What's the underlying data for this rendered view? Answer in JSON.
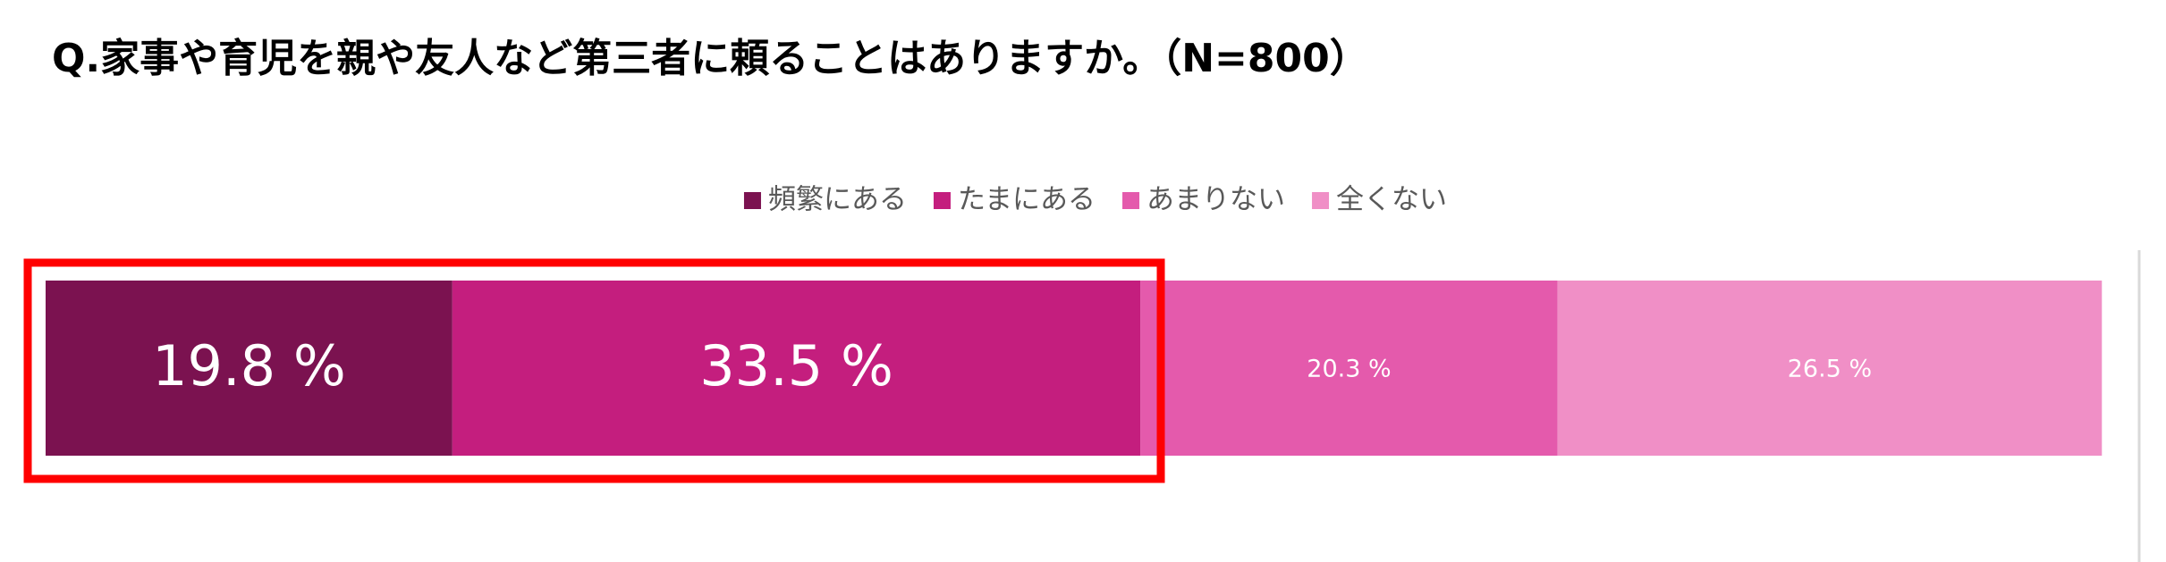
{
  "chart_data": {
    "type": "bar",
    "orientation": "horizontal",
    "stacked": true,
    "title": "Q.家事や育児を親や友人など第三者に頼ることはありますか。（N=800）",
    "xlim": [
      0,
      100
    ],
    "series": [
      {
        "name": "頻繁にある",
        "color": "#7b1250",
        "values": [
          19.8
        ],
        "value_labels": [
          "19.8 %"
        ]
      },
      {
        "name": "たまにある",
        "color": "#c41e7e",
        "values": [
          33.5
        ],
        "value_labels": [
          "33.5 %"
        ]
      },
      {
        "name": "あまりない",
        "color": "#e45aac",
        "values": [
          20.3
        ],
        "value_labels": [
          "20.3 %"
        ]
      },
      {
        "name": "全くない",
        "color": "#f08fc6",
        "values": [
          26.5
        ],
        "value_labels": [
          "26.5 %"
        ]
      }
    ]
  }
}
